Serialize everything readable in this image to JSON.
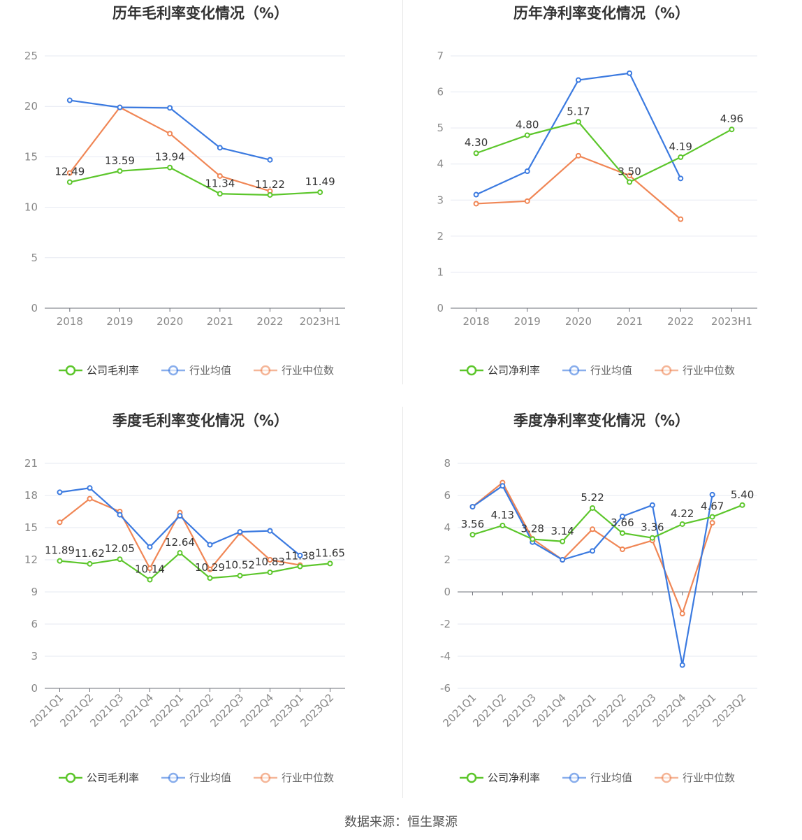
{
  "charts": [
    {
      "type": "line",
      "title": "历年毛利率变化情况（%）",
      "categories": [
        "2018",
        "2019",
        "2020",
        "2021",
        "2022",
        "2023H1"
      ],
      "ylim": [
        0,
        25
      ],
      "yticks": [
        0,
        5,
        10,
        15,
        20,
        25
      ],
      "legend": "bottom",
      "series": [
        {
          "name": "公司毛利率",
          "color": "#5cc62b",
          "values": [
            12.49,
            13.59,
            13.94,
            11.34,
            11.22,
            11.49
          ],
          "labels": true
        },
        {
          "name": "行业均值",
          "color": "#3b7ae0",
          "values": [
            20.6,
            19.9,
            19.85,
            15.9,
            14.7,
            null
          ],
          "labels": false
        },
        {
          "name": "行业中位数",
          "color": "#f08655",
          "values": [
            13.4,
            19.9,
            17.3,
            13.1,
            11.6,
            null
          ],
          "labels": false
        }
      ]
    },
    {
      "type": "line",
      "title": "历年净利率变化情况（%）",
      "categories": [
        "2018",
        "2019",
        "2020",
        "2021",
        "2022",
        "2023H1"
      ],
      "ylim": [
        0,
        7
      ],
      "yticks": [
        0,
        1,
        2,
        3,
        4,
        5,
        6,
        7
      ],
      "legend": "bottom",
      "series": [
        {
          "name": "公司净利率",
          "color": "#5cc62b",
          "values": [
            4.3,
            4.8,
            5.17,
            3.5,
            4.19,
            4.96
          ],
          "labels": true
        },
        {
          "name": "行业均值",
          "color": "#3b7ae0",
          "values": [
            3.15,
            3.8,
            6.33,
            6.52,
            3.6,
            null
          ],
          "labels": false
        },
        {
          "name": "行业中位数",
          "color": "#f08655",
          "values": [
            2.9,
            2.97,
            4.23,
            3.68,
            2.47,
            null
          ],
          "labels": false
        }
      ]
    },
    {
      "type": "line",
      "title": "季度毛利率变化情况（%）",
      "categories": [
        "2021Q1",
        "2021Q2",
        "2021Q3",
        "2021Q4",
        "2022Q1",
        "2022Q2",
        "2022Q3",
        "2022Q4",
        "2023Q1",
        "2023Q2"
      ],
      "ylim": [
        0,
        21
      ],
      "yticks": [
        0,
        3,
        6,
        9,
        12,
        15,
        18,
        21
      ],
      "legend": "bottom",
      "series": [
        {
          "name": "公司毛利率",
          "color": "#5cc62b",
          "values": [
            11.89,
            11.62,
            12.05,
            10.14,
            12.64,
            10.29,
            10.52,
            10.83,
            11.38,
            11.65
          ],
          "labels": true
        },
        {
          "name": "行业均值",
          "color": "#3b7ae0",
          "values": [
            18.3,
            18.7,
            16.2,
            13.2,
            16.1,
            13.4,
            14.6,
            14.7,
            12.4,
            null
          ],
          "labels": false
        },
        {
          "name": "行业中位数",
          "color": "#f08655",
          "values": [
            15.5,
            17.7,
            16.5,
            11.2,
            16.4,
            11.1,
            14.5,
            12.0,
            11.5,
            null
          ],
          "labels": false
        }
      ]
    },
    {
      "type": "line",
      "title": "季度净利率变化情况（%）",
      "categories": [
        "2021Q1",
        "2021Q2",
        "2021Q3",
        "2021Q4",
        "2022Q1",
        "2022Q2",
        "2022Q3",
        "2022Q4",
        "2023Q1",
        "2023Q2"
      ],
      "ylim": [
        -6,
        8
      ],
      "yticks": [
        -6,
        -4,
        -2,
        0,
        2,
        4,
        6,
        8
      ],
      "legend": "bottom",
      "series": [
        {
          "name": "公司净利率",
          "color": "#5cc62b",
          "values": [
            3.56,
            4.13,
            3.28,
            3.14,
            5.22,
            3.66,
            3.36,
            4.22,
            4.67,
            5.4
          ],
          "labels": true
        },
        {
          "name": "行业均值",
          "color": "#3b7ae0",
          "values": [
            5.3,
            6.6,
            3.1,
            2.0,
            2.55,
            4.7,
            5.4,
            -4.55,
            6.05,
            null
          ],
          "labels": false
        },
        {
          "name": "行业中位数",
          "color": "#f08655",
          "values": [
            5.3,
            6.8,
            3.3,
            2.0,
            3.9,
            2.65,
            3.2,
            -1.35,
            4.3,
            null
          ],
          "labels": false
        }
      ]
    }
  ],
  "footer": "数据来源：恒生聚源"
}
